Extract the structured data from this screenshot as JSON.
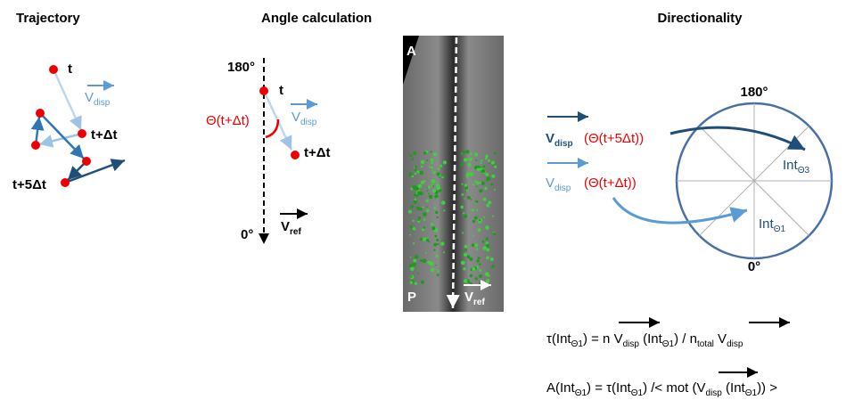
{
  "titles": {
    "trajectory": "Trajectory",
    "angle": "Angle calculation",
    "directionality": "Directionality"
  },
  "trajectory": {
    "t": "t",
    "t_dt": "t+Δt",
    "t_5dt": "t+5Δt",
    "v_disp": [
      {
        "t": "V"
      },
      {
        "sub": "disp"
      }
    ]
  },
  "angle": {
    "deg180": "180°",
    "t": "t",
    "theta": "Θ(t+Δt)",
    "t_dt": "t+Δt",
    "deg0": "0°",
    "v_disp": [
      {
        "t": "V"
      },
      {
        "sub": "disp"
      }
    ],
    "v_ref": [
      {
        "t": "V"
      },
      {
        "sub": "ref"
      }
    ]
  },
  "image": {
    "anterior": "A",
    "posterior": "P",
    "v_ref": [
      {
        "t": "V"
      },
      {
        "sub": "ref"
      }
    ]
  },
  "directionality": {
    "deg180": "180°",
    "deg0": "0°",
    "vector3": {
      "symbol": [
        {
          "t": "V"
        },
        {
          "sub": "disp"
        }
      ],
      "angle": "(Θ(t+5Δt))"
    },
    "vector1": {
      "symbol": [
        {
          "t": "V"
        },
        {
          "sub": "disp"
        }
      ],
      "angle": "(Θ(t+Δt))"
    },
    "int3": [
      {
        "t": "Int"
      },
      {
        "sub": "Θ3"
      }
    ],
    "int1": [
      {
        "t": "Int"
      },
      {
        "sub": "Θ1"
      }
    ]
  },
  "formulas": [
    [
      {
        "t": "τ(Int"
      },
      {
        "sub": "Θ1"
      },
      {
        "t": ") = n "
      },
      {
        "t": "V"
      },
      {
        "sub": "disp"
      },
      {
        "t": " (Int"
      },
      {
        "sub": "Θ1"
      },
      {
        "t": ") / n"
      },
      {
        "sub": "total"
      },
      {
        "t": " V"
      },
      {
        "sub": "disp"
      }
    ],
    [
      {
        "t": "A(Int"
      },
      {
        "sub": "Θ1"
      },
      {
        "t": ") = τ(Int"
      },
      {
        "sub": "Θ1"
      },
      {
        "t": ") /< mot ("
      },
      {
        "t": "V"
      },
      {
        "sub": "disp"
      },
      {
        "t": " (Int"
      },
      {
        "sub": "Θ1"
      },
      {
        "t": ")) >"
      }
    ]
  ]
}
